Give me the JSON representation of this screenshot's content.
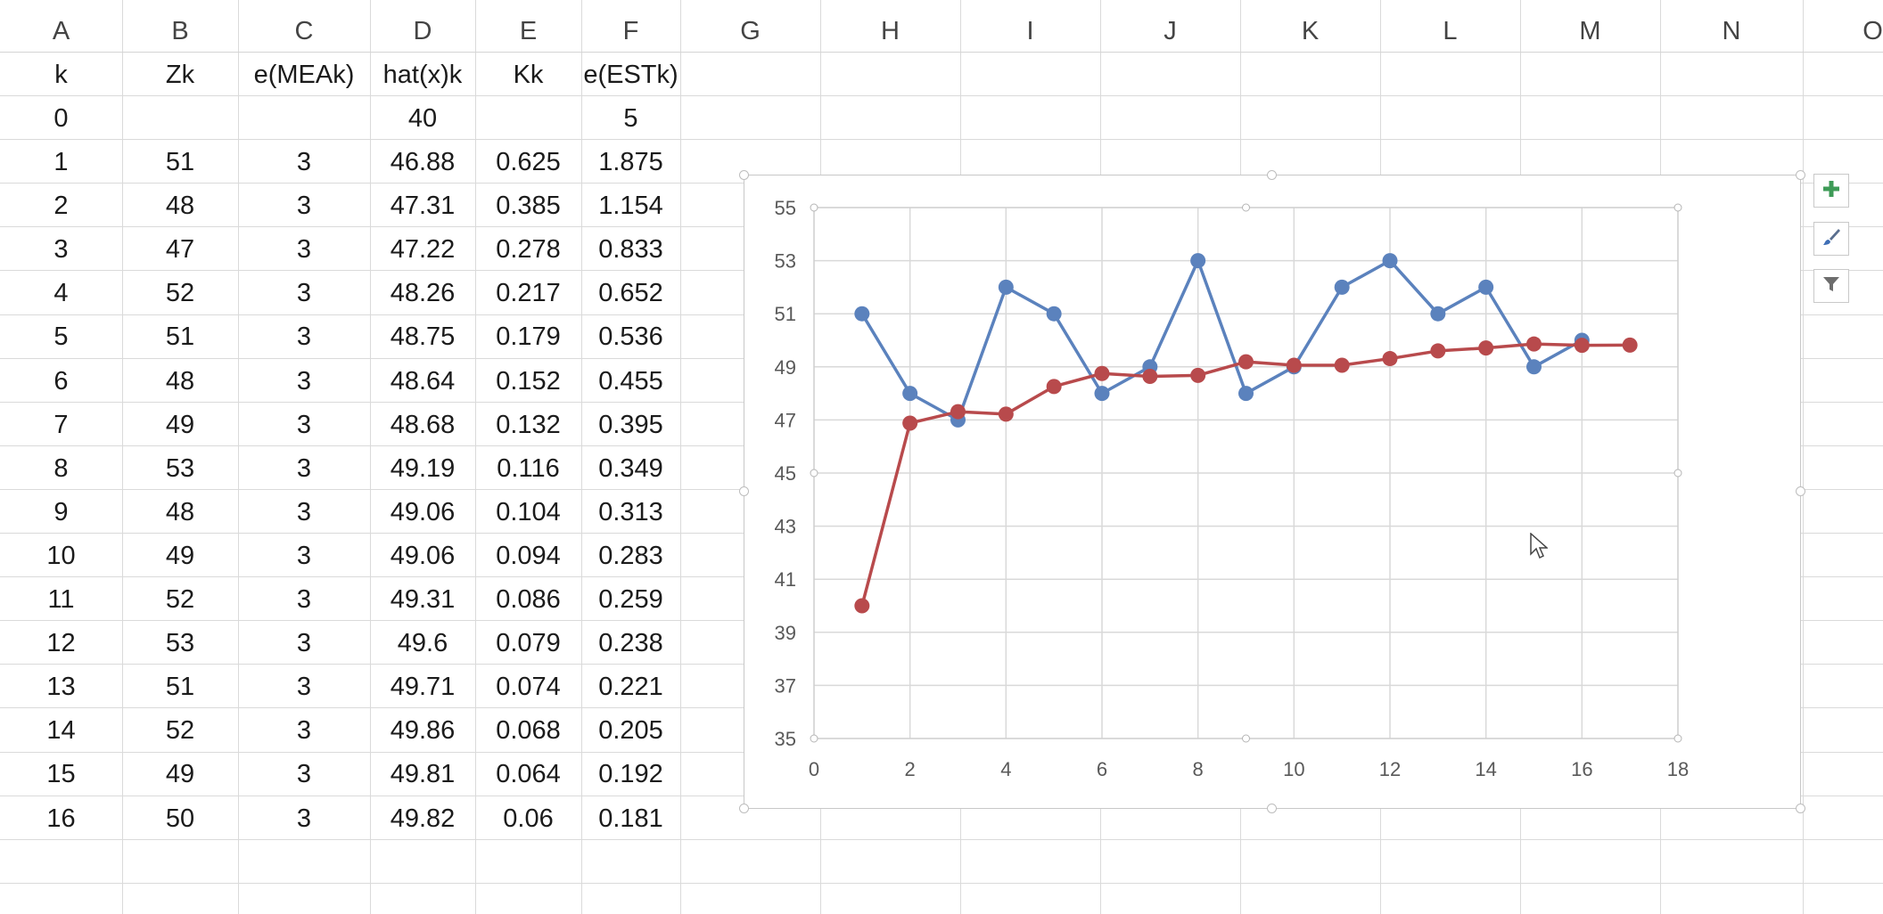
{
  "columns": [
    "A",
    "B",
    "C",
    "D",
    "E",
    "F",
    "G",
    "H",
    "I",
    "J",
    "K",
    "L",
    "M",
    "N",
    "O"
  ],
  "table": {
    "headers": [
      "k",
      "Zk",
      "e(MEAk)",
      "hat(x)k",
      "Kk",
      "e(ESTk)"
    ],
    "initial": {
      "k": "0",
      "Zk": "",
      "eMEA": "",
      "xhat": "40",
      "K": "",
      "eEST": "5"
    },
    "rows": [
      [
        "1",
        "51",
        "3",
        "46.88",
        "0.625",
        "1.875"
      ],
      [
        "2",
        "48",
        "3",
        "47.31",
        "0.385",
        "1.154"
      ],
      [
        "3",
        "47",
        "3",
        "47.22",
        "0.278",
        "0.833"
      ],
      [
        "4",
        "52",
        "3",
        "48.26",
        "0.217",
        "0.652"
      ],
      [
        "5",
        "51",
        "3",
        "48.75",
        "0.179",
        "0.536"
      ],
      [
        "6",
        "48",
        "3",
        "48.64",
        "0.152",
        "0.455"
      ],
      [
        "7",
        "49",
        "3",
        "48.68",
        "0.132",
        "0.395"
      ],
      [
        "8",
        "53",
        "3",
        "49.19",
        "0.116",
        "0.349"
      ],
      [
        "9",
        "48",
        "3",
        "49.06",
        "0.104",
        "0.313"
      ],
      [
        "10",
        "49",
        "3",
        "49.06",
        "0.094",
        "0.283"
      ],
      [
        "11",
        "52",
        "3",
        "49.31",
        "0.086",
        "0.259"
      ],
      [
        "12",
        "53",
        "3",
        "49.6",
        "0.079",
        "0.238"
      ],
      [
        "13",
        "51",
        "3",
        "49.71",
        "0.074",
        "0.221"
      ],
      [
        "14",
        "52",
        "3",
        "49.86",
        "0.068",
        "0.205"
      ],
      [
        "15",
        "49",
        "3",
        "49.81",
        "0.064",
        "0.192"
      ],
      [
        "16",
        "50",
        "3",
        "49.82",
        "0.06",
        "0.181"
      ]
    ]
  },
  "chart_data": {
    "type": "scatter",
    "title": "",
    "xlabel": "",
    "ylabel": "",
    "xlim": [
      0,
      18
    ],
    "ylim": [
      35,
      55
    ],
    "xticks": [
      0,
      2,
      4,
      6,
      8,
      10,
      12,
      14,
      16,
      18
    ],
    "yticks": [
      35,
      37,
      39,
      41,
      43,
      45,
      47,
      49,
      51,
      53,
      55
    ],
    "grid": true,
    "series": [
      {
        "color": "#5b82bd",
        "x": [
          1,
          2,
          3,
          4,
          5,
          6,
          7,
          8,
          9,
          10,
          11,
          12,
          13,
          14,
          15,
          16
        ],
        "y": [
          51,
          48,
          47,
          52,
          51,
          48,
          49,
          53,
          48,
          49,
          52,
          53,
          51,
          52,
          49,
          50
        ]
      },
      {
        "color": "#b84a4c",
        "x": [
          1,
          2,
          3,
          4,
          5,
          6,
          7,
          8,
          9,
          10,
          11,
          12,
          13,
          14,
          15,
          16,
          17
        ],
        "y": [
          40,
          46.88,
          47.31,
          47.22,
          48.26,
          48.75,
          48.64,
          48.68,
          49.19,
          49.06,
          49.06,
          49.31,
          49.6,
          49.71,
          49.86,
          49.81,
          49.82
        ]
      }
    ]
  },
  "chart_buttons": [
    {
      "icon": "plus-icon"
    },
    {
      "icon": "brush-icon"
    },
    {
      "icon": "filter-icon"
    }
  ]
}
